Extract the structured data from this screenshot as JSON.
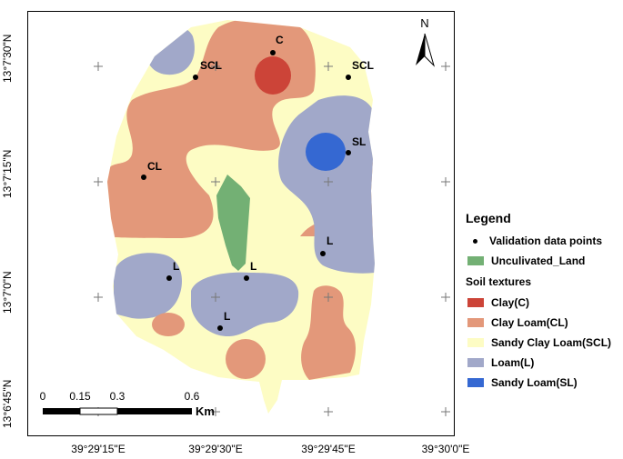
{
  "legend": {
    "title": "Legend",
    "validation_label": "Validation data points",
    "uncultivated_label": "Unculivated_Land",
    "section_title": "Soil textures",
    "classes": [
      {
        "label": "Clay(C)",
        "color": "#cc4438"
      },
      {
        "label": "Clay Loam(CL)",
        "color": "#e3987a"
      },
      {
        "label": "Sandy Clay Loam(SCL)",
        "color": "#fdfcc4"
      },
      {
        "label": "Loam(L)",
        "color": "#a1a8c9"
      },
      {
        "label": "Sandy Loam(SL)",
        "color": "#3568d2"
      }
    ],
    "uncultivated_color": "#73b074"
  },
  "axes": {
    "latitudes": [
      "13°7'30\"N",
      "13°7'15\"N",
      "13°7'0\"N",
      "13°6'45\"N"
    ],
    "longitudes": [
      "39°29'15\"E",
      "39°29'30\"E",
      "39°29'45\"E",
      "39°30'0\"E"
    ]
  },
  "north_label": "N",
  "scale_bar": {
    "labels": [
      "0",
      "0.15",
      "0.3",
      "0.6"
    ],
    "unit": "Km"
  },
  "points": [
    "C",
    "SCL",
    "SCL",
    "SL",
    "CL",
    "L",
    "L",
    "L",
    "L"
  ]
}
